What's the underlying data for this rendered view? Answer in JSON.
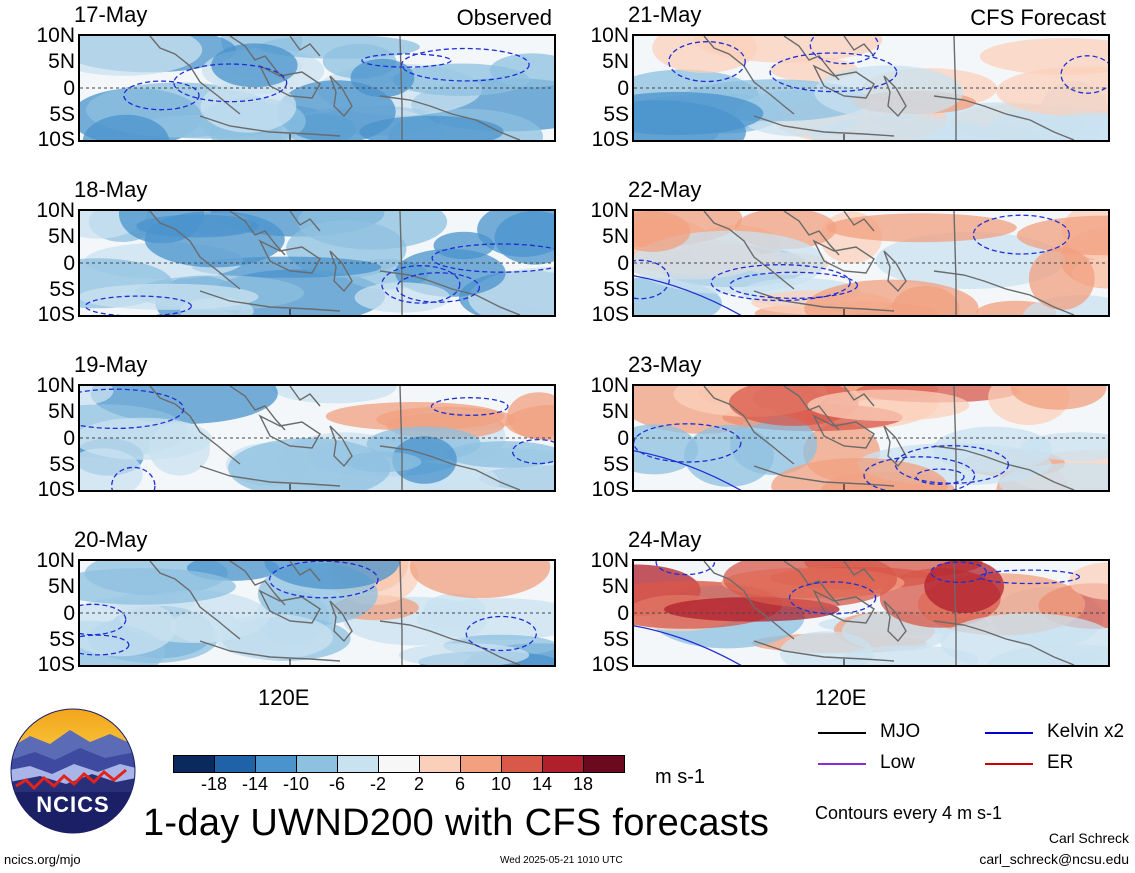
{
  "chart_data": {
    "type": "heatmap",
    "title": "1-day UWND200 with CFS forecasts",
    "units": "m s-1",
    "x_tick_label": "120E",
    "y_tick_labels": [
      "10N",
      "5N",
      "0",
      "5S",
      "10S"
    ],
    "contour_note": "Contours every 4 m s-1",
    "colorbar": {
      "levels": [
        "-18",
        "-14",
        "-10",
        "-6",
        "-2",
        "2",
        "6",
        "10",
        "14",
        "18"
      ],
      "colors": [
        "#0a2a5e",
        "#1f62a8",
        "#4a93cc",
        "#8ec0e0",
        "#c9e2f0",
        "#f7f7f7",
        "#fbd0bb",
        "#f2a080",
        "#d8584a",
        "#b01f2c",
        "#6b0a1e"
      ]
    },
    "panels": [
      {
        "date": "17-May",
        "tag": "Observed",
        "column": "observed"
      },
      {
        "date": "18-May",
        "tag": "",
        "column": "observed"
      },
      {
        "date": "19-May",
        "tag": "",
        "column": "observed"
      },
      {
        "date": "20-May",
        "tag": "",
        "column": "observed"
      },
      {
        "date": "21-May",
        "tag": "CFS Forecast",
        "column": "forecast"
      },
      {
        "date": "22-May",
        "tag": "",
        "column": "forecast"
      },
      {
        "date": "23-May",
        "tag": "",
        "column": "forecast"
      },
      {
        "date": "24-May",
        "tag": "",
        "column": "forecast"
      }
    ],
    "legend": [
      {
        "label": "MJO",
        "color": "#000000"
      },
      {
        "label": "Kelvin x2",
        "color": "#0000cc"
      },
      {
        "label": "Low",
        "color": "#8a2be2"
      },
      {
        "label": "ER",
        "color": "#cc0000"
      }
    ]
  },
  "logo": {
    "text": "NCICS"
  },
  "footer": {
    "left": "ncics.org/mjo",
    "center": "Wed 2025-05-21 1010 UTC",
    "author": "Carl Schreck",
    "email": "carl_schreck@ncsu.edu"
  }
}
